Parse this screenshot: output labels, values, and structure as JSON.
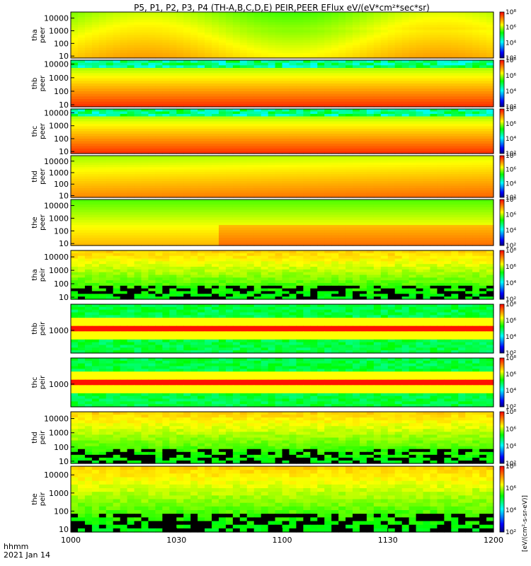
{
  "title": "P5, P1, P2, P3, P4 (TH-A,B,C,D,E) PEIR,PEER EFlux eV/(eV*cm²*sec*sr)",
  "footer": {
    "line1": "hhmm",
    "line2": "2021 Jan 14"
  },
  "colorbar_label": "[eV/(cm²-s-sr-eV)]",
  "chart_data": {
    "type": "heatmap",
    "title": "P5, P1, P2, P3, P4 (TH-A,B,C,D,E) PEIR,PEER EFlux eV/(eV*cm²*sec*sr)",
    "x_ticks": [
      "1000",
      "1030",
      "1100",
      "1130",
      "1200"
    ],
    "xlim_minutes": [
      600,
      720
    ],
    "x_scale": "time hhmm",
    "colorbar": {
      "scale": "log",
      "ticks": [
        "10²",
        "10⁴",
        "10⁶",
        "10⁸"
      ],
      "range": [
        100,
        100000000
      ]
    },
    "panels": [
      {
        "probe": "tha",
        "label": "tha\npeer",
        "species": "electron",
        "ylim": [
          7,
          30000
        ],
        "y_ticks": [
          "10",
          "100",
          "1000",
          "10000"
        ],
        "y_scale": "log"
      },
      {
        "probe": "thb",
        "label": "thb\npeer",
        "species": "electron",
        "ylim": [
          7,
          20000
        ],
        "y_ticks": [
          "10",
          "100",
          "1000",
          "10000"
        ],
        "y_scale": "log"
      },
      {
        "probe": "thc",
        "label": "thc\npeer",
        "species": "electron",
        "ylim": [
          7,
          20000
        ],
        "y_ticks": [
          "10",
          "100",
          "1000",
          "10000"
        ],
        "y_scale": "log"
      },
      {
        "probe": "thd",
        "label": "thd\npeer",
        "species": "electron",
        "ylim": [
          7,
          30000
        ],
        "y_ticks": [
          "10",
          "100",
          "1000",
          "10000"
        ],
        "y_scale": "log"
      },
      {
        "probe": "the",
        "label": "the\npeer",
        "species": "electron",
        "ylim": [
          7,
          30000
        ],
        "y_ticks": [
          "10",
          "100",
          "1000",
          "10000"
        ],
        "y_scale": "log"
      },
      {
        "probe": "tha",
        "label": "tha\npeir",
        "species": "ion",
        "ylim": [
          7,
          30000
        ],
        "y_ticks": [
          "10",
          "100",
          "1000",
          "10000"
        ],
        "y_scale": "log"
      },
      {
        "probe": "thb",
        "label": "thb\npeir",
        "species": "ion",
        "ylim": [
          300,
          4000
        ],
        "y_ticks": [
          "1000"
        ],
        "y_scale": "log"
      },
      {
        "probe": "thc",
        "label": "thc\npeir",
        "species": "ion",
        "ylim": [
          300,
          4000
        ],
        "y_ticks": [
          "1000"
        ],
        "y_scale": "log"
      },
      {
        "probe": "thd",
        "label": "thd\npeir",
        "species": "ion",
        "ylim": [
          7,
          30000
        ],
        "y_ticks": [
          "10",
          "100",
          "1000",
          "10000"
        ],
        "y_scale": "log"
      },
      {
        "probe": "the",
        "label": "the\npeir",
        "species": "ion",
        "ylim": [
          7,
          30000
        ],
        "y_ticks": [
          "10",
          "100",
          "1000",
          "10000"
        ],
        "y_scale": "log"
      }
    ]
  }
}
